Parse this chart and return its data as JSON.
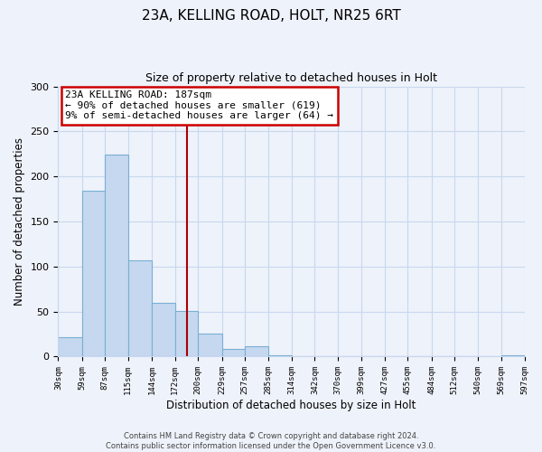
{
  "title": "23A, KELLING ROAD, HOLT, NR25 6RT",
  "subtitle": "Size of property relative to detached houses in Holt",
  "xlabel": "Distribution of detached houses by size in Holt",
  "ylabel": "Number of detached properties",
  "bin_edges": [
    30,
    59,
    87,
    115,
    144,
    172,
    200,
    229,
    257,
    285,
    314,
    342,
    370,
    399,
    427,
    455,
    484,
    512,
    540,
    569,
    597
  ],
  "bin_counts": [
    22,
    184,
    224,
    107,
    60,
    51,
    26,
    9,
    12,
    1,
    0,
    0,
    0,
    0,
    0,
    0,
    0,
    0,
    0,
    1
  ],
  "bar_color": "#c5d8f0",
  "bar_edge_color": "#7aafd4",
  "vline_x": 187,
  "vline_color": "#aa0000",
  "annotation_title": "23A KELLING ROAD: 187sqm",
  "annotation_line1": "← 90% of detached houses are smaller (619)",
  "annotation_line2": "9% of semi-detached houses are larger (64) →",
  "annotation_box_edgecolor": "#cc0000",
  "annotation_box_facecolor": "white",
  "ylim": [
    0,
    300
  ],
  "footer1": "Contains HM Land Registry data © Crown copyright and database right 2024.",
  "footer2": "Contains public sector information licensed under the Open Government Licence v3.0.",
  "tick_labels": [
    "30sqm",
    "59sqm",
    "87sqm",
    "115sqm",
    "144sqm",
    "172sqm",
    "200sqm",
    "229sqm",
    "257sqm",
    "285sqm",
    "314sqm",
    "342sqm",
    "370sqm",
    "399sqm",
    "427sqm",
    "455sqm",
    "484sqm",
    "512sqm",
    "540sqm",
    "569sqm",
    "597sqm"
  ],
  "background_color": "#eef2fa",
  "grid_color": "#c8d8ee"
}
